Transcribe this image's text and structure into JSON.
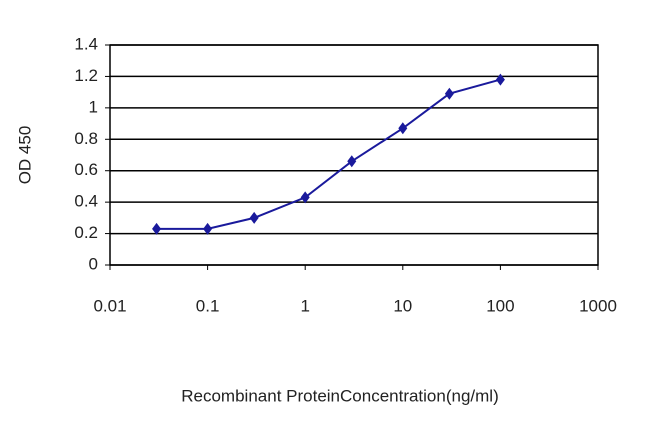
{
  "chart_data": {
    "type": "line",
    "xlabel": "Recombinant ProteinConcentration(ng/ml)",
    "ylabel": "OD 450",
    "x": [
      0.03,
      0.1,
      0.3,
      1,
      3,
      10,
      30,
      100
    ],
    "values": [
      0.23,
      0.23,
      0.3,
      0.43,
      0.66,
      0.87,
      1.09,
      1.18
    ],
    "color": "#1a1a9c",
    "xscale": "log",
    "xlim": [
      0.01,
      1000
    ],
    "xticks": [
      0.01,
      0.1,
      1,
      10,
      100,
      1000
    ],
    "ylim": [
      0,
      1.4
    ],
    "yticks": [
      0,
      0.2,
      0.4,
      0.6,
      0.8,
      1,
      1.2,
      1.4
    ],
    "grid": true
  }
}
